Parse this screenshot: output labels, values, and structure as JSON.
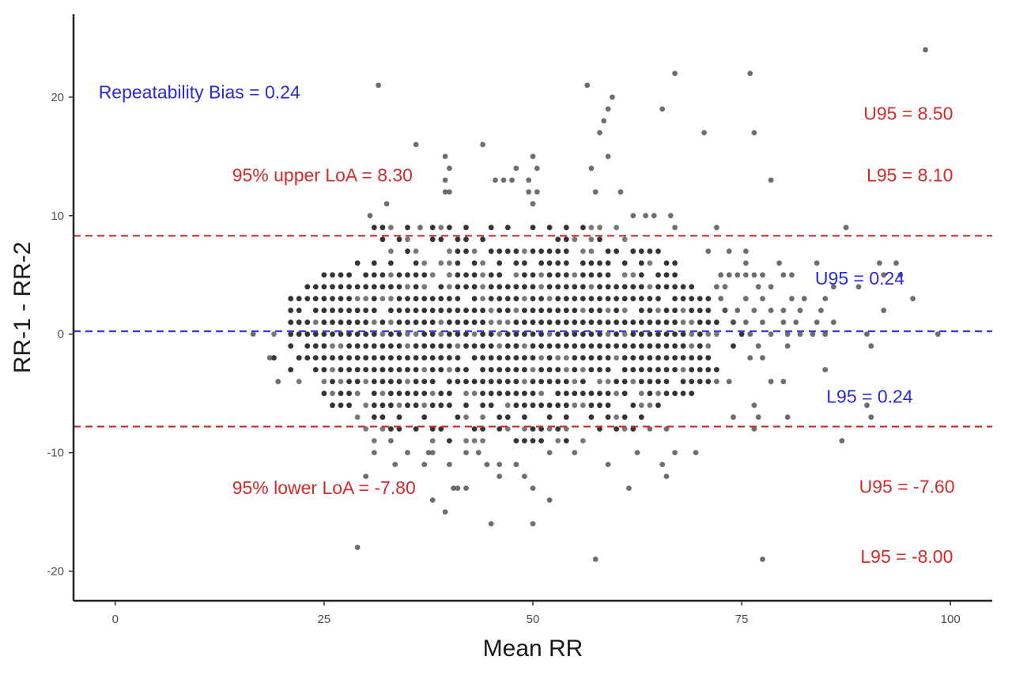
{
  "chart_data": {
    "type": "scatter",
    "title": "",
    "xlabel": "Mean RR",
    "ylabel": "RR-1 - RR-2",
    "xlim": [
      -5,
      105
    ],
    "ylim": [
      -22.5,
      27
    ],
    "x_ticks": [
      0,
      25,
      50,
      75,
      100
    ],
    "y_ticks": [
      -20,
      -10,
      0,
      10,
      20
    ],
    "grid": false,
    "colors": {
      "points": "#333333",
      "bias_line": "#3a3ae0",
      "loa_line": "#c83232",
      "bias_text": "#2a2ad8",
      "loa_text": "#d42a2a"
    },
    "reference_lines": [
      {
        "name": "bias",
        "y": 0.24,
        "style": "dashed",
        "color": "#3a3ae0"
      },
      {
        "name": "upper_loa",
        "y": 8.3,
        "style": "dashed",
        "color": "#c83232"
      },
      {
        "name": "lower_loa",
        "y": -7.8,
        "style": "dashed",
        "color": "#c83232"
      }
    ],
    "annotations": [
      {
        "text": "Repeatability Bias = 0.24",
        "x": -2,
        "y": 19.9,
        "color": "#2a2ad8",
        "anchor": "start"
      },
      {
        "text": "95% upper LoA = 8.30",
        "x": 14,
        "y": 12.9,
        "color": "#d42a2a",
        "anchor": "start"
      },
      {
        "text": "95% lower LoA = -7.80",
        "x": 14,
        "y": -13.5,
        "color": "#d42a2a",
        "anchor": "start"
      },
      {
        "text": "U95 = 8.50",
        "x": 100.3,
        "y": 18.1,
        "color": "#d42a2a",
        "anchor": "end"
      },
      {
        "text": "L95 = 8.10",
        "x": 100.3,
        "y": 12.9,
        "color": "#d42a2a",
        "anchor": "end"
      },
      {
        "text": "U95 = 0.24",
        "x": 94.5,
        "y": 4.2,
        "color": "#2a2ad8",
        "anchor": "end"
      },
      {
        "text": "L95 = 0.24",
        "x": 95.5,
        "y": -5.8,
        "color": "#2a2ad8",
        "anchor": "end"
      },
      {
        "text": "U95 = -7.60",
        "x": 100.5,
        "y": -13.4,
        "color": "#d42a2a",
        "anchor": "end"
      },
      {
        "text": "L95 = -8.00",
        "x": 100.3,
        "y": -19.3,
        "color": "#d42a2a",
        "anchor": "end"
      }
    ],
    "points_core": {
      "description_free": true,
      "rows": [
        {
          "y": 9,
          "x_start": 29,
          "x_end": 62,
          "step": 1,
          "density": 0.45
        },
        {
          "y": 8,
          "x_start": 31,
          "x_end": 62,
          "step": 1,
          "density": 0.55
        },
        {
          "y": 7,
          "x_start": 30,
          "x_end": 66,
          "step": 1,
          "density": 0.65
        },
        {
          "y": 6,
          "x_start": 27,
          "x_end": 67,
          "step": 1,
          "density": 0.75
        },
        {
          "y": 5,
          "x_start": 25,
          "x_end": 69,
          "step": 1,
          "density": 0.85
        },
        {
          "y": 4,
          "x_start": 23,
          "x_end": 70,
          "step": 1,
          "density": 0.9
        },
        {
          "y": 3,
          "x_start": 21,
          "x_end": 72,
          "step": 1,
          "density": 0.95
        },
        {
          "y": 2,
          "x_start": 20,
          "x_end": 73,
          "step": 1,
          "density": 0.97
        },
        {
          "y": 1,
          "x_start": 20,
          "x_end": 74,
          "step": 1,
          "density": 1.0
        },
        {
          "y": 0,
          "x_start": 19,
          "x_end": 75,
          "step": 1,
          "density": 1.0
        },
        {
          "y": -1,
          "x_start": 20,
          "x_end": 74,
          "step": 1,
          "density": 1.0
        },
        {
          "y": -2,
          "x_start": 19,
          "x_end": 73,
          "step": 1,
          "density": 0.97
        },
        {
          "y": -3,
          "x_start": 21,
          "x_end": 72,
          "step": 1,
          "density": 0.95
        },
        {
          "y": -4,
          "x_start": 22,
          "x_end": 71,
          "step": 1,
          "density": 0.9
        },
        {
          "y": -5,
          "x_start": 24,
          "x_end": 69,
          "step": 1,
          "density": 0.85
        },
        {
          "y": -6,
          "x_start": 26,
          "x_end": 67,
          "step": 1,
          "density": 0.75
        },
        {
          "y": -7,
          "x_start": 27,
          "x_end": 66,
          "step": 1,
          "density": 0.65
        },
        {
          "y": -8,
          "x_start": 30,
          "x_end": 64,
          "step": 1,
          "density": 0.55
        },
        {
          "y": -9,
          "x_start": 30,
          "x_end": 61,
          "step": 1,
          "density": 0.45
        }
      ]
    },
    "points_outer": [
      [
        31.5,
        21
      ],
      [
        36,
        16
      ],
      [
        39.5,
        15
      ],
      [
        40,
        14
      ],
      [
        39.5,
        13
      ],
      [
        39.5,
        12
      ],
      [
        40,
        12
      ],
      [
        44,
        16
      ],
      [
        45.5,
        13
      ],
      [
        46.5,
        13
      ],
      [
        47.5,
        13
      ],
      [
        48,
        14
      ],
      [
        49.5,
        13
      ],
      [
        50,
        15
      ],
      [
        50.5,
        14
      ],
      [
        50.5,
        12
      ],
      [
        49.5,
        12
      ],
      [
        50,
        11
      ],
      [
        56.5,
        21
      ],
      [
        57.5,
        12
      ],
      [
        57,
        14
      ],
      [
        58,
        17
      ],
      [
        58.5,
        18
      ],
      [
        59,
        19
      ],
      [
        59.5,
        20
      ],
      [
        59,
        15
      ],
      [
        60.5,
        12
      ],
      [
        62,
        10
      ],
      [
        65.5,
        19
      ],
      [
        67,
        22
      ],
      [
        70.5,
        17
      ],
      [
        76,
        22
      ],
      [
        76.5,
        17
      ],
      [
        78.5,
        13
      ],
      [
        97,
        24
      ],
      [
        30.5,
        10
      ],
      [
        32.5,
        11
      ],
      [
        36.5,
        9
      ],
      [
        63.5,
        10
      ],
      [
        64.5,
        10
      ],
      [
        66.5,
        10
      ],
      [
        67,
        9
      ],
      [
        72,
        9
      ],
      [
        87.5,
        9
      ],
      [
        71,
        7
      ],
      [
        73.5,
        7
      ],
      [
        75.5,
        6
      ],
      [
        75.5,
        7
      ],
      [
        79.5,
        6
      ],
      [
        84,
        6
      ],
      [
        91.5,
        6
      ],
      [
        93.5,
        6
      ],
      [
        92,
        5
      ],
      [
        94,
        5
      ],
      [
        72.5,
        5
      ],
      [
        73.5,
        5
      ],
      [
        74.5,
        5
      ],
      [
        75.5,
        5
      ],
      [
        76.5,
        5
      ],
      [
        77.5,
        5
      ],
      [
        80,
        5
      ],
      [
        81,
        5
      ],
      [
        72,
        4
      ],
      [
        73,
        4
      ],
      [
        77,
        4
      ],
      [
        78.5,
        4
      ],
      [
        86,
        4
      ],
      [
        89,
        4
      ],
      [
        72.5,
        3
      ],
      [
        75.5,
        3
      ],
      [
        77.5,
        3
      ],
      [
        81,
        3
      ],
      [
        82.5,
        3
      ],
      [
        85,
        3
      ],
      [
        95.5,
        3
      ],
      [
        73,
        2
      ],
      [
        74.5,
        2
      ],
      [
        76.5,
        2
      ],
      [
        78.5,
        2
      ],
      [
        80,
        2
      ],
      [
        82,
        2
      ],
      [
        84.5,
        2
      ],
      [
        92,
        2
      ],
      [
        74,
        1
      ],
      [
        75.5,
        1
      ],
      [
        77.5,
        1
      ],
      [
        80,
        1
      ],
      [
        81.5,
        1
      ],
      [
        84,
        1
      ],
      [
        86,
        1
      ],
      [
        76,
        0
      ],
      [
        78.5,
        0
      ],
      [
        80.5,
        0
      ],
      [
        82,
        0
      ],
      [
        83.5,
        0
      ],
      [
        85,
        0
      ],
      [
        90,
        0
      ],
      [
        98.5,
        0
      ],
      [
        16.5,
        0
      ],
      [
        77,
        -1
      ],
      [
        80.5,
        -1
      ],
      [
        90.5,
        -1
      ],
      [
        18.5,
        -2
      ],
      [
        76,
        -2
      ],
      [
        77.5,
        -2
      ],
      [
        19.5,
        -4
      ],
      [
        72,
        -4
      ],
      [
        73.5,
        -4
      ],
      [
        78.5,
        -4
      ],
      [
        80,
        -4
      ],
      [
        85,
        -3
      ],
      [
        76.5,
        -6
      ],
      [
        74,
        -7
      ],
      [
        77,
        -7
      ],
      [
        80.5,
        -7
      ],
      [
        87,
        -9
      ],
      [
        90,
        -6
      ],
      [
        90.5,
        -7
      ],
      [
        76.5,
        -8
      ],
      [
        64,
        -8
      ],
      [
        66,
        -8
      ],
      [
        31,
        -10
      ],
      [
        33,
        -9
      ],
      [
        35,
        -10
      ],
      [
        37.5,
        -10
      ],
      [
        38,
        -10
      ],
      [
        42,
        -10
      ],
      [
        43.5,
        -10
      ],
      [
        44.5,
        -11
      ],
      [
        46,
        -11
      ],
      [
        48,
        -11
      ],
      [
        52,
        -10
      ],
      [
        55,
        -10
      ],
      [
        62.5,
        -10
      ],
      [
        67,
        -10
      ],
      [
        69.5,
        -10
      ],
      [
        33.5,
        -11
      ],
      [
        37,
        -11
      ],
      [
        40,
        -11
      ],
      [
        46,
        -12
      ],
      [
        49,
        -12
      ],
      [
        59,
        -11
      ],
      [
        65.5,
        -11
      ],
      [
        66,
        -12
      ],
      [
        30,
        -12
      ],
      [
        38,
        -14
      ],
      [
        39.5,
        -15
      ],
      [
        40.5,
        -13
      ],
      [
        41,
        -13
      ],
      [
        42,
        -13
      ],
      [
        50,
        -13
      ],
      [
        52,
        -14
      ],
      [
        61.5,
        -13
      ],
      [
        45,
        -16
      ],
      [
        50,
        -16
      ],
      [
        29,
        -18
      ],
      [
        57.5,
        -19
      ],
      [
        77.5,
        -19
      ]
    ]
  },
  "axis": {
    "xlabel": "Mean RR",
    "ylabel": "RR-1 - RR-2",
    "x_tick_labels": [
      "0",
      "25",
      "50",
      "75",
      "100"
    ],
    "y_tick_labels": [
      "-20",
      "-10",
      "0",
      "10",
      "20"
    ]
  },
  "annotations_text": {
    "bias": "Repeatability Bias = 0.24",
    "upper_loa": "95% upper LoA = 8.30",
    "lower_loa": "95% lower LoA = -7.80",
    "upper_u95": "U95 = 8.50",
    "upper_l95": "L95 = 8.10",
    "bias_u95": "U95 = 0.24",
    "bias_l95": "L95 = 0.24",
    "lower_u95": "U95 = -7.60",
    "lower_l95": "L95 = -8.00"
  }
}
